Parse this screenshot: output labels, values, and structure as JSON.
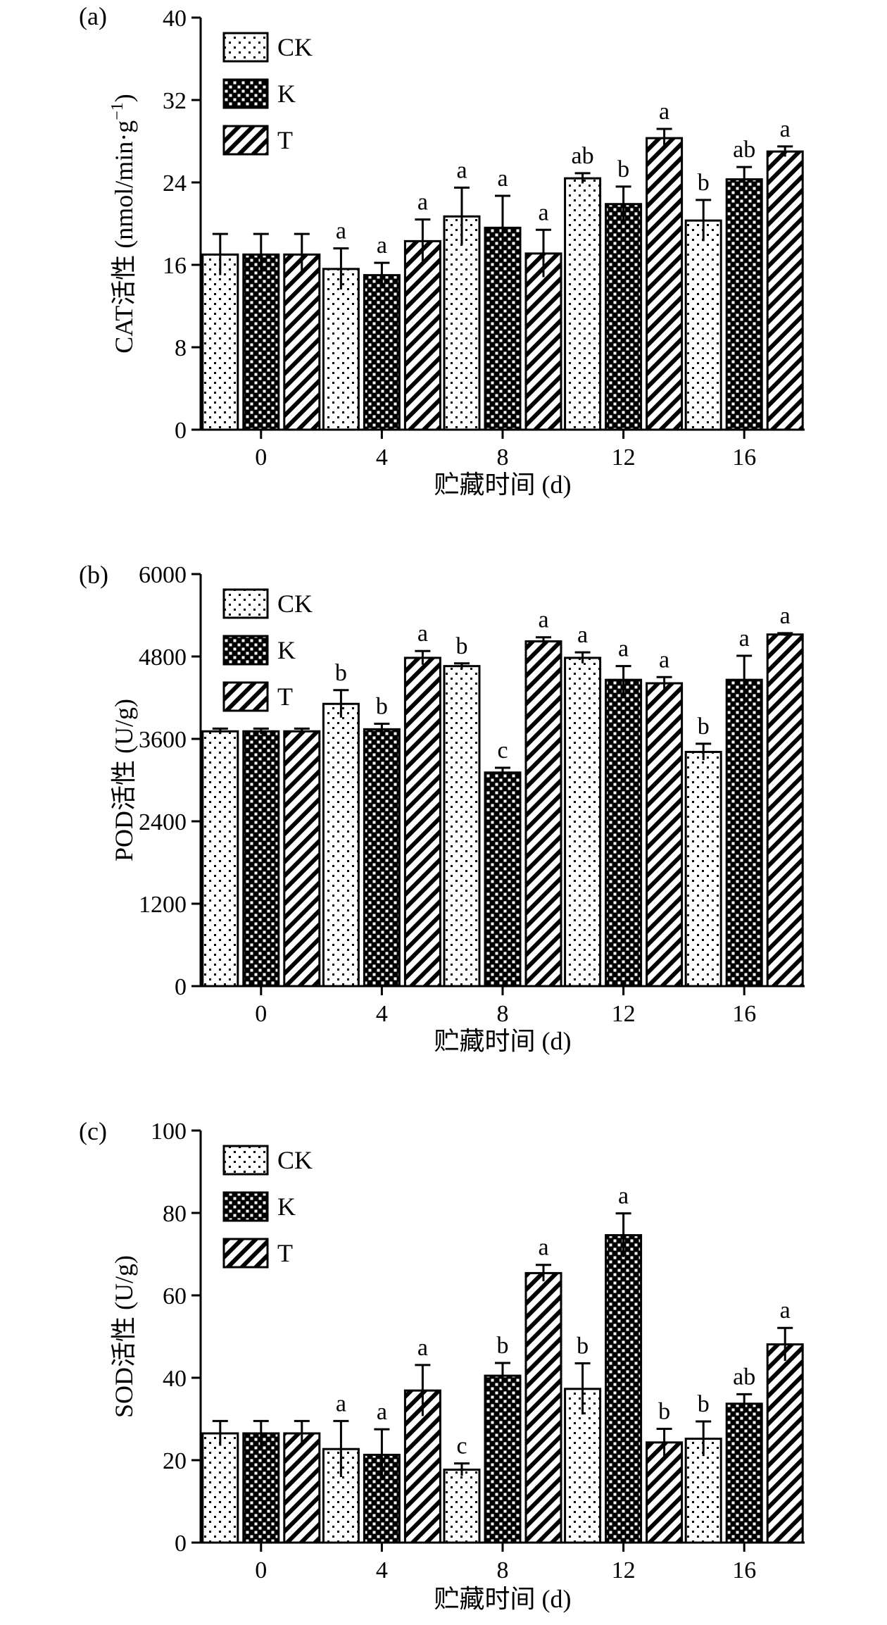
{
  "chart_data": [
    {
      "type": "bar",
      "panel_label": "(a)",
      "categories": [
        "0",
        "4",
        "8",
        "12",
        "16"
      ],
      "xlabel": "贮藏时间 (d)",
      "ylabel": "CAT活性 (nmol/min·g",
      "ylabel_sup": "−1",
      "ylabel_close": ")",
      "ylim": [
        0,
        40
      ],
      "yticks": [
        0,
        8,
        16,
        24,
        32,
        40
      ],
      "legend_position": "top-left",
      "series": [
        {
          "name": "CK",
          "pattern": "dots",
          "values": [
            17.0,
            15.6,
            20.7,
            24.4,
            20.3
          ],
          "errors": [
            2.0,
            2.0,
            2.8,
            0.5,
            2.0
          ],
          "letters": [
            "",
            "a",
            "a",
            "ab",
            "b"
          ]
        },
        {
          "name": "K",
          "pattern": "checker",
          "values": [
            17.0,
            15.0,
            19.6,
            21.9,
            24.3
          ],
          "errors": [
            2.0,
            1.2,
            3.1,
            1.7,
            1.2
          ],
          "letters": [
            "",
            "a",
            "a",
            "b",
            "ab"
          ]
        },
        {
          "name": "T",
          "pattern": "hatch",
          "values": [
            17.0,
            18.3,
            17.1,
            28.3,
            27.0
          ],
          "errors": [
            2.0,
            2.1,
            2.3,
            0.9,
            0.5
          ],
          "letters": [
            "",
            "a",
            "a",
            "a",
            "a"
          ]
        }
      ]
    },
    {
      "type": "bar",
      "panel_label": "(b)",
      "categories": [
        "0",
        "4",
        "8",
        "12",
        "16"
      ],
      "xlabel": "贮藏时间 (d)",
      "ylabel": "POD活性 (U/g)",
      "ylim": [
        0,
        6000
      ],
      "yticks": [
        0,
        1200,
        2400,
        3600,
        4800,
        6000
      ],
      "legend_position": "top-left",
      "series": [
        {
          "name": "CK",
          "pattern": "dots",
          "values": [
            3710,
            4110,
            4660,
            4780,
            3410
          ],
          "errors": [
            40,
            200,
            40,
            80,
            120
          ],
          "letters": [
            "",
            "b",
            "b",
            "a",
            "b"
          ]
        },
        {
          "name": "K",
          "pattern": "checker",
          "values": [
            3710,
            3740,
            3110,
            4460,
            4460
          ],
          "errors": [
            40,
            80,
            70,
            200,
            350
          ],
          "letters": [
            "",
            "b",
            "c",
            "a",
            "a"
          ]
        },
        {
          "name": "T",
          "pattern": "hatch",
          "values": [
            3710,
            4780,
            5020,
            4410,
            5120
          ],
          "errors": [
            40,
            100,
            60,
            90,
            20
          ],
          "letters": [
            "",
            "a",
            "a",
            "a",
            "a"
          ]
        }
      ]
    },
    {
      "type": "bar",
      "panel_label": "(c)",
      "categories": [
        "0",
        "4",
        "8",
        "12",
        "16"
      ],
      "xlabel": "贮藏时间 (d)",
      "ylabel": "SOD活性 (U/g)",
      "ylim": [
        0,
        100
      ],
      "yticks": [
        0,
        20,
        40,
        60,
        80,
        100
      ],
      "legend_position": "top-left",
      "series": [
        {
          "name": "CK",
          "pattern": "dots",
          "values": [
            26.5,
            22.7,
            17.7,
            37.3,
            25.2
          ],
          "errors": [
            3.0,
            6.8,
            1.5,
            6.2,
            4.2
          ],
          "letters": [
            "",
            "a",
            "c",
            "b",
            "b"
          ]
        },
        {
          "name": "K",
          "pattern": "checker",
          "values": [
            26.5,
            21.3,
            40.5,
            74.6,
            33.7
          ],
          "errors": [
            3.0,
            6.2,
            3.1,
            5.3,
            2.3
          ],
          "letters": [
            "",
            "a",
            "b",
            "a",
            "ab"
          ]
        },
        {
          "name": "T",
          "pattern": "hatch",
          "values": [
            26.5,
            36.9,
            65.4,
            24.3,
            48.1
          ],
          "errors": [
            3.0,
            6.2,
            2.0,
            3.3,
            4.0
          ],
          "letters": [
            "",
            "a",
            "a",
            "b",
            "a"
          ]
        }
      ]
    }
  ]
}
